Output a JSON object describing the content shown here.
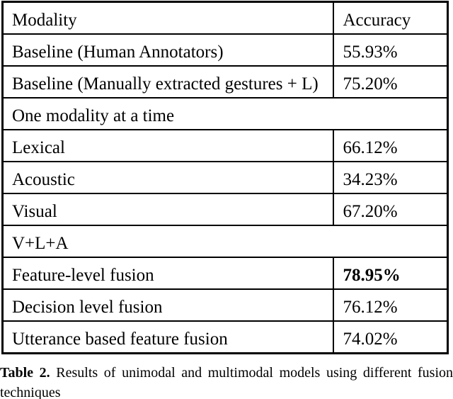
{
  "table": {
    "header": {
      "modality": "Modality",
      "accuracy": "Accuracy"
    },
    "rows": [
      {
        "label": "Baseline (Human Annotators)",
        "value": "55.93%"
      },
      {
        "label": "Baseline (Manually extracted gestures + L)",
        "value": "75.20%"
      },
      {
        "label": "One modality at a time"
      },
      {
        "label": "Lexical",
        "value": "66.12%"
      },
      {
        "label": "Acoustic",
        "value": "34.23%"
      },
      {
        "label": "Visual",
        "value": "67.20%"
      },
      {
        "label": "V+L+A"
      },
      {
        "label": "Feature-level fusion",
        "value": "78.95%"
      },
      {
        "label": "Decision level fusion",
        "value": "76.12%"
      },
      {
        "label": "Utterance based feature fusion",
        "value": "74.02%"
      }
    ]
  },
  "caption": {
    "label": "Table 2.",
    "text": " Results of unimodal and multimodal models using different fusion techniques"
  },
  "colors": {
    "text": "#000000",
    "background": "#ffffff",
    "border": "#000000"
  }
}
